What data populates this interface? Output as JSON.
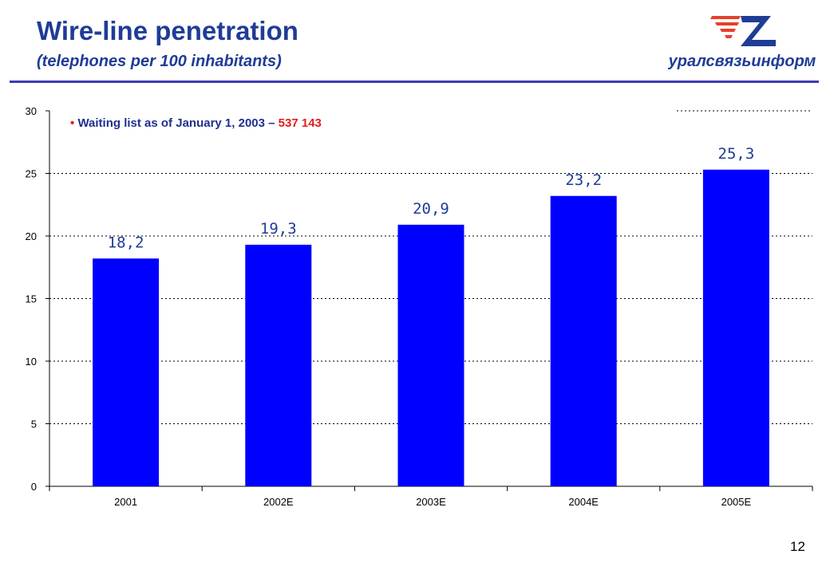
{
  "header": {
    "title": "Wire-line penetration",
    "subtitle": "(telephones per 100 inhabitants)"
  },
  "logo": {
    "wordmark": "уралсвязьинформ",
    "colors": {
      "red": "#e8402a",
      "blue": "#1f3c96"
    }
  },
  "note": {
    "bullet": "•",
    "text": "Waiting list as of January 1, 2003 – ",
    "number": "537 143"
  },
  "page_number": "12",
  "colors": {
    "bar": "#0000ff",
    "title": "#1f3c96",
    "data_label": "#1f3c96",
    "accent_red": "#e02020"
  },
  "chart_data": {
    "type": "bar",
    "categories": [
      "2001",
      "2002E",
      "2003E",
      "2004E",
      "2005E"
    ],
    "values": [
      18.2,
      19.3,
      20.9,
      23.2,
      25.3
    ],
    "data_labels": [
      "18,2",
      "19,3",
      "20,9",
      "23,2",
      "25,3"
    ],
    "ylim": [
      0,
      30
    ],
    "yticks": [
      0,
      5,
      10,
      15,
      20,
      25,
      30
    ],
    "grid": true,
    "title": "",
    "xlabel": "",
    "ylabel": ""
  }
}
